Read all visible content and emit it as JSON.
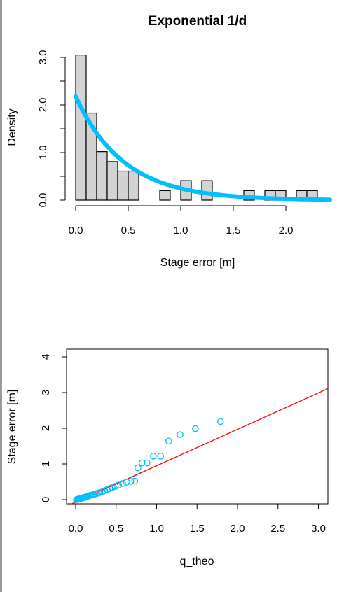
{
  "colors": {
    "bar_fill": "#d3d3d3",
    "bar_stroke": "#000000",
    "density_curve": "#00bfff",
    "qq_points": "#00bfff",
    "qq_line": "#ff0000",
    "axis": "#000000",
    "left_border": "#9a9a9a"
  },
  "chart_data": [
    {
      "type": "bar",
      "subtype": "histogram",
      "title": "Exponential 1/d",
      "xlabel": "Stage error [m]",
      "ylabel": "Density",
      "xlim": [
        -0.02,
        2.42
      ],
      "ylim": [
        0,
        3.0
      ],
      "x_ticks": [
        0.0,
        0.5,
        1.0,
        1.5,
        2.0
      ],
      "x_tick_labels": [
        "0.0",
        "0.5",
        "1.0",
        "1.5",
        "2.0"
      ],
      "y_ticks": [
        0.0,
        1.0,
        2.0,
        3.0
      ],
      "y_tick_labels": [
        "0.0",
        "1.0",
        "2.0",
        "3.0"
      ],
      "bin_width": 0.1,
      "bins": [
        {
          "x0": 0.0,
          "x1": 0.1,
          "density": 3.05
        },
        {
          "x0": 0.1,
          "x1": 0.2,
          "density": 1.83
        },
        {
          "x0": 0.2,
          "x1": 0.3,
          "density": 1.02
        },
        {
          "x0": 0.3,
          "x1": 0.4,
          "density": 0.81
        },
        {
          "x0": 0.4,
          "x1": 0.5,
          "density": 0.61
        },
        {
          "x0": 0.5,
          "x1": 0.6,
          "density": 0.61
        },
        {
          "x0": 0.6,
          "x1": 0.7,
          "density": 0.0
        },
        {
          "x0": 0.7,
          "x1": 0.8,
          "density": 0.0
        },
        {
          "x0": 0.8,
          "x1": 0.9,
          "density": 0.2
        },
        {
          "x0": 0.9,
          "x1": 1.0,
          "density": 0.0
        },
        {
          "x0": 1.0,
          "x1": 1.1,
          "density": 0.41
        },
        {
          "x0": 1.1,
          "x1": 1.2,
          "density": 0.0
        },
        {
          "x0": 1.2,
          "x1": 1.3,
          "density": 0.41
        },
        {
          "x0": 1.3,
          "x1": 1.4,
          "density": 0.0
        },
        {
          "x0": 1.4,
          "x1": 1.5,
          "density": 0.0
        },
        {
          "x0": 1.5,
          "x1": 1.6,
          "density": 0.0
        },
        {
          "x0": 1.6,
          "x1": 1.7,
          "density": 0.2
        },
        {
          "x0": 1.7,
          "x1": 1.8,
          "density": 0.0
        },
        {
          "x0": 1.8,
          "x1": 1.9,
          "density": 0.2
        },
        {
          "x0": 1.9,
          "x1": 2.0,
          "density": 0.2
        },
        {
          "x0": 2.0,
          "x1": 2.1,
          "density": 0.0
        },
        {
          "x0": 2.1,
          "x1": 2.2,
          "density": 0.2
        },
        {
          "x0": 2.2,
          "x1": 2.3,
          "density": 0.2
        }
      ],
      "fitted_curve": {
        "distribution": "exponential",
        "rate": 2.18,
        "x_range": [
          0.0,
          2.42
        ]
      }
    },
    {
      "type": "scatter",
      "subtype": "qq-plot",
      "xlabel": "q_theo",
      "ylabel": "Stage error [m]",
      "xlim": [
        -0.12,
        3.12
      ],
      "ylim": [
        -0.16,
        4.16
      ],
      "x_ticks": [
        0.0,
        0.5,
        1.0,
        1.5,
        2.0,
        2.5,
        3.0
      ],
      "x_tick_labels": [
        "0.0",
        "0.5",
        "1.0",
        "1.5",
        "2.0",
        "2.5",
        "3.0"
      ],
      "y_ticks": [
        0,
        1,
        2,
        3,
        4
      ],
      "y_tick_labels": [
        "0",
        "1",
        "2",
        "3",
        "4"
      ],
      "points": [
        [
          0.01,
          0.0
        ],
        [
          0.02,
          0.01
        ],
        [
          0.03,
          0.01
        ],
        [
          0.04,
          0.02
        ],
        [
          0.05,
          0.02
        ],
        [
          0.06,
          0.03
        ],
        [
          0.07,
          0.04
        ],
        [
          0.08,
          0.04
        ],
        [
          0.09,
          0.05
        ],
        [
          0.1,
          0.06
        ],
        [
          0.11,
          0.06
        ],
        [
          0.12,
          0.07
        ],
        [
          0.13,
          0.08
        ],
        [
          0.14,
          0.09
        ],
        [
          0.15,
          0.1
        ],
        [
          0.17,
          0.11
        ],
        [
          0.18,
          0.12
        ],
        [
          0.2,
          0.13
        ],
        [
          0.22,
          0.14
        ],
        [
          0.24,
          0.16
        ],
        [
          0.26,
          0.17
        ],
        [
          0.28,
          0.19
        ],
        [
          0.3,
          0.2
        ],
        [
          0.33,
          0.22
        ],
        [
          0.36,
          0.25
        ],
        [
          0.39,
          0.28
        ],
        [
          0.42,
          0.31
        ],
        [
          0.45,
          0.34
        ],
        [
          0.49,
          0.37
        ],
        [
          0.53,
          0.41
        ],
        [
          0.58,
          0.45
        ],
        [
          0.63,
          0.49
        ],
        [
          0.68,
          0.51
        ],
        [
          0.73,
          0.52
        ],
        [
          0.77,
          0.89
        ],
        [
          0.82,
          1.03
        ],
        [
          0.88,
          1.03
        ],
        [
          0.96,
          1.22
        ],
        [
          1.05,
          1.22
        ],
        [
          1.15,
          1.64
        ],
        [
          1.29,
          1.82
        ],
        [
          1.48,
          1.99
        ],
        [
          1.79,
          2.19
        ]
      ],
      "reference_line": {
        "intercept": -0.07,
        "slope": 1.02
      }
    }
  ]
}
